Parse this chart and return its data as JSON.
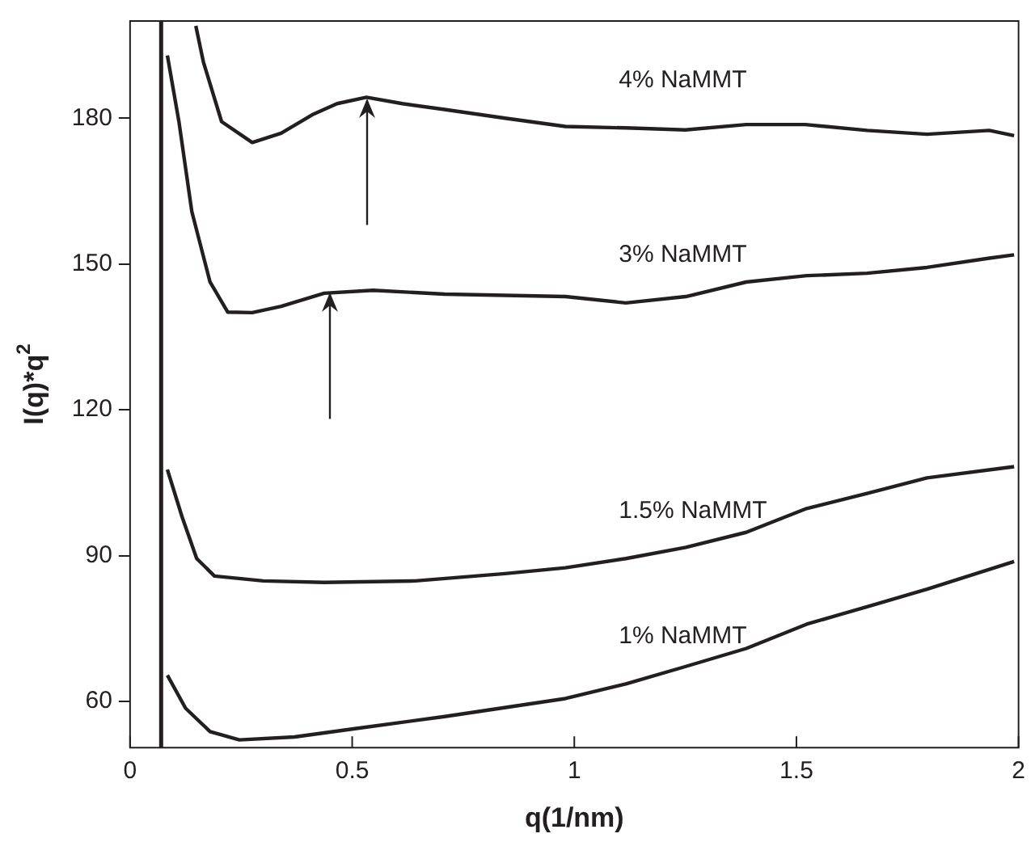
{
  "chart_data": {
    "type": "line",
    "xlabel": "q(1/nm)",
    "ylabel": "I(q)*q$^{2}$",
    "xlim": [
      0,
      2
    ],
    "xticks": [
      0,
      0.5,
      1,
      1.5,
      2
    ],
    "ylim": [
      50.5,
      200
    ],
    "yticks": [
      60,
      90,
      120,
      150,
      180
    ],
    "grid": false,
    "legend": false,
    "marker": "none",
    "line_style": "solid",
    "ref_lines": [
      {
        "axis": "x",
        "value": 0.07,
        "color": "#231f20"
      }
    ],
    "series": [
      {
        "name": "4% NaMMT",
        "color": "#231f20",
        "x": [
          0.148,
          0.165,
          0.206,
          0.275,
          0.34,
          0.41,
          0.466,
          0.532,
          0.613,
          0.708,
          0.844,
          0.98,
          1.116,
          1.25,
          1.387,
          1.52,
          1.659,
          1.794,
          1.934,
          1.99
        ],
        "values": [
          199,
          191.6,
          179.3,
          175,
          176.9,
          180.7,
          183,
          184.3,
          183,
          181.8,
          180,
          178.3,
          178,
          177.6,
          178.7,
          178.7,
          177.5,
          176.7,
          177.5,
          176.4
        ]
      },
      {
        "name": "3% NaMMT",
        "color": "#231f20",
        "x": [
          0.084,
          0.11,
          0.139,
          0.18,
          0.22,
          0.275,
          0.34,
          0.437,
          0.547,
          0.708,
          0.98,
          1.116,
          1.251,
          1.387,
          1.523,
          1.659,
          1.794,
          1.934,
          1.99
        ],
        "values": [
          192.9,
          179.3,
          160.8,
          146.3,
          140.1,
          140,
          141.3,
          144,
          144.6,
          143.8,
          143.3,
          142,
          143.3,
          146.3,
          147.6,
          148.1,
          149.3,
          151.2,
          151.9
        ]
      },
      {
        "name": "1.5% NaMMT",
        "color": "#231f20",
        "x": [
          0.084,
          0.117,
          0.15,
          0.19,
          0.3,
          0.437,
          0.642,
          0.844,
          0.98,
          1.116,
          1.251,
          1.387,
          1.523,
          1.659,
          1.794,
          1.99
        ],
        "values": [
          107.7,
          98,
          89.4,
          85.8,
          84.8,
          84.5,
          84.8,
          86.3,
          87.5,
          89.4,
          91.7,
          94.8,
          99.7,
          102.8,
          106,
          108.3
        ]
      },
      {
        "name": "1% NaMMT",
        "color": "#231f20",
        "x": [
          0.084,
          0.125,
          0.18,
          0.246,
          0.37,
          0.506,
          0.708,
          0.98,
          1.116,
          1.251,
          1.387,
          1.523,
          1.659,
          1.794,
          1.99
        ],
        "values": [
          65.4,
          58.6,
          53.8,
          52.1,
          52.7,
          54.4,
          56.9,
          60.6,
          63.6,
          67.2,
          70.9,
          75.9,
          79.5,
          83.1,
          88.8
        ]
      }
    ]
  }
}
